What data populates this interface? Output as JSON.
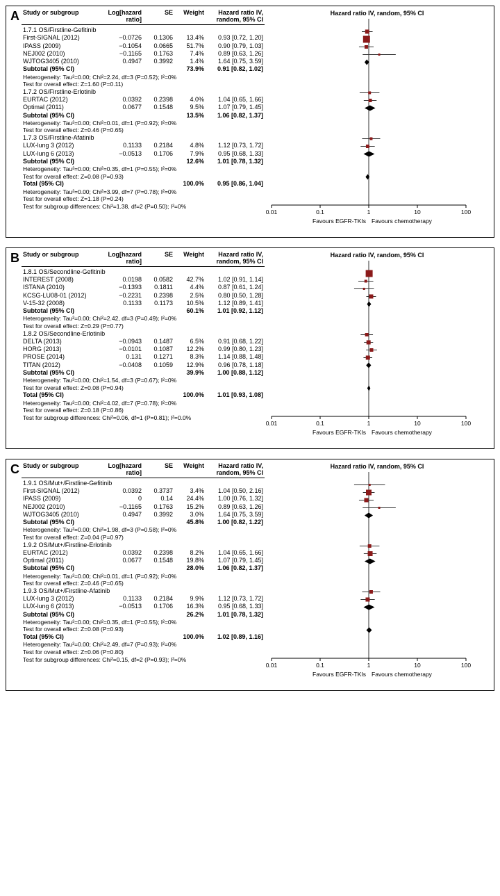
{
  "xScale": {
    "min": 0.01,
    "max": 100,
    "ticks": [
      0.01,
      0.1,
      1,
      10,
      100
    ],
    "tickLabels": [
      "0.01",
      "0.1",
      "1",
      "10",
      "100"
    ],
    "favLeft": "Favours EGFR-TKIs",
    "favRight": "Favours chemotherapy",
    "nullLine": 1
  },
  "colors": {
    "study": "#8b1a1a",
    "diamond": "#000",
    "ci": "#333"
  },
  "header": {
    "study": "Study or subgroup",
    "log": "Log[hazard ratio]",
    "se": "SE",
    "wt": "Weight",
    "hrTxt": "Hazard ratio\nIV, random, 95% CI",
    "hrPlot": "Hazard ratio\nIV, random, 95% CI"
  },
  "panels": [
    {
      "label": "A",
      "groups": [
        {
          "title": "1.7.1 OS/Firstline-Gefitinib",
          "studies": [
            {
              "name": "First-SIGNAL (2012)",
              "log": "−0.0726",
              "se": "0.1306",
              "wt": "13.4%",
              "txt": "0.93 [0.72, 1.20]",
              "hr": 0.93,
              "lo": 0.72,
              "hi": 1.2,
              "sz": 6
            },
            {
              "name": "IPASS (2009)",
              "log": "−0.1054",
              "se": "0.0665",
              "wt": "51.7%",
              "txt": "0.90 [0.79, 1.03]",
              "hr": 0.9,
              "lo": 0.79,
              "hi": 1.03,
              "sz": 10
            },
            {
              "name": "NEJ002 (2010)",
              "log": "−0.1165",
              "se": "0.1763",
              "wt": "7.4%",
              "txt": "0.89 [0.63, 1.26]",
              "hr": 0.89,
              "lo": 0.63,
              "hi": 1.26,
              "sz": 5
            },
            {
              "name": "WJTOG3405 (2010)",
              "log": "0.4947",
              "se": "0.3992",
              "wt": "1.4%",
              "txt": "1.64 [0.75, 3.59]",
              "hr": 1.64,
              "lo": 0.75,
              "hi": 3.59,
              "sz": 3
            }
          ],
          "subtotal": {
            "wt": "73.9%",
            "txt": "0.91 [0.82, 1.02]",
            "hr": 0.91,
            "lo": 0.82,
            "hi": 1.02
          },
          "het": "Heterogeneity: Tau²=0.00; Chi²=2.24, df=3 (P=0.52); I²=0%",
          "eff": "Test for overall effect: Z=1.60 (P=0.11)"
        },
        {
          "title": "1.7.2 OS/Firstline-Erlotinib",
          "studies": [
            {
              "name": "EURTAC (2012)",
              "log": "0.0392",
              "se": "0.2398",
              "wt": "4.0%",
              "txt": "1.04 [0.65, 1.66]",
              "hr": 1.04,
              "lo": 0.65,
              "hi": 1.66,
              "sz": 4
            },
            {
              "name": "Optimal (2011)",
              "log": "0.0677",
              "se": "0.1548",
              "wt": "9.5%",
              "txt": "1.07 [0.79, 1.45]",
              "hr": 1.07,
              "lo": 0.79,
              "hi": 1.45,
              "sz": 5
            }
          ],
          "subtotal": {
            "wt": "13.5%",
            "txt": "1.06 [0.82, 1.37]",
            "hr": 1.06,
            "lo": 0.82,
            "hi": 1.37
          },
          "het": "Heterogeneity: Tau²=0.00; Chi²=0.01, df=1 (P=0.92); I²=0%",
          "eff": "Test for overall effect: Z=0.46 (P=0.65)"
        },
        {
          "title": "1.7.3 OS/Firstline-Afatinib",
          "studies": [
            {
              "name": "LUX-lung 3 (2012)",
              "log": "0.1133",
              "se": "0.2184",
              "wt": "4.8%",
              "txt": "1.12 [0.73, 1.72]",
              "hr": 1.12,
              "lo": 0.73,
              "hi": 1.72,
              "sz": 4
            },
            {
              "name": "LUX-lung 6 (2013)",
              "log": "−0.0513",
              "se": "0.1706",
              "wt": "7.9%",
              "txt": "0.95 [0.68, 1.33]",
              "hr": 0.95,
              "lo": 0.68,
              "hi": 1.33,
              "sz": 5
            }
          ],
          "subtotal": {
            "wt": "12.6%",
            "txt": "1.01 [0.78, 1.32]",
            "hr": 1.01,
            "lo": 0.78,
            "hi": 1.32
          },
          "het": "Heterogeneity: Tau²=0.00; Chi²=0.35, df=1 (P=0.55); I²=0%",
          "eff": "Test for overall effect: Z=0.08 (P=0.93)"
        }
      ],
      "total": {
        "wt": "100.0%",
        "txt": "0.95 [0.86, 1.04]",
        "hr": 0.95,
        "lo": 0.86,
        "hi": 1.04
      },
      "totHet": "Heterogeneity: Tau²=0.00; Chi²=3.99, df=7 (P=0.78); I²=0%",
      "totEff": "Test for overall effect: Z=1.18 (P=0.24)",
      "subDiff": "Test for subgroup differences: Chi²=1.38, df=2 (P=0.50); I²=0%"
    },
    {
      "label": "B",
      "groups": [
        {
          "title": "1.8.1 OS/Secondline-Gefitinib",
          "studies": [
            {
              "name": "INTEREST (2008)",
              "log": "0.0198",
              "se": "0.0582",
              "wt": "42.7%",
              "txt": "1.02 [0.91, 1.14]",
              "hr": 1.02,
              "lo": 0.91,
              "hi": 1.14,
              "sz": 10
            },
            {
              "name": "ISTANA (2010)",
              "log": "−0.1393",
              "se": "0.1811",
              "wt": "4.4%",
              "txt": "0.87 [0.61, 1.24]",
              "hr": 0.87,
              "lo": 0.61,
              "hi": 1.24,
              "sz": 4
            },
            {
              "name": "KCSG-LU08-01 (2012)",
              "log": "−0.2231",
              "se": "0.2398",
              "wt": "2.5%",
              "txt": "0.80 [0.50, 1.28]",
              "hr": 0.8,
              "lo": 0.5,
              "hi": 1.28,
              "sz": 3
            },
            {
              "name": "V-15-32 (2008)",
              "log": "0.1133",
              "se": "0.1173",
              "wt": "10.5%",
              "txt": "1.12 [0.89, 1.41]",
              "hr": 1.12,
              "lo": 0.89,
              "hi": 1.41,
              "sz": 6
            }
          ],
          "subtotal": {
            "wt": "60.1%",
            "txt": "1.01 [0.92, 1.12]",
            "hr": 1.01,
            "lo": 0.92,
            "hi": 1.12
          },
          "het": "Heterogeneity: Tau²=0.00; Chi²=2.42, df=3 (P=0.49); I²=0%",
          "eff": "Test for overall effect: Z=0.29 (P=0.77)"
        },
        {
          "title": "1.8.2 OS/Secondline-Erlotinib",
          "studies": [
            {
              "name": "DELTA (2013)",
              "log": "−0.0943",
              "se": "0.1487",
              "wt": "6.5%",
              "txt": "0.91 [0.68, 1.22]",
              "hr": 0.91,
              "lo": 0.68,
              "hi": 1.22,
              "sz": 5
            },
            {
              "name": "HORG (2013)",
              "log": "−0.0101",
              "se": "0.1087",
              "wt": "12.2%",
              "txt": "0.99 [0.80, 1.23]",
              "hr": 0.99,
              "lo": 0.8,
              "hi": 1.23,
              "sz": 6
            },
            {
              "name": "PROSE (2014)",
              "log": "0.131",
              "se": "0.1271",
              "wt": "8.3%",
              "txt": "1.14 [0.88, 1.48]",
              "hr": 1.14,
              "lo": 0.88,
              "hi": 1.48,
              "sz": 5
            },
            {
              "name": "TITAN (2012)",
              "log": "−0.0408",
              "se": "0.1059",
              "wt": "12.9%",
              "txt": "0.96 [0.78, 1.18]",
              "hr": 0.96,
              "lo": 0.78,
              "hi": 1.18,
              "sz": 6
            }
          ],
          "subtotal": {
            "wt": "39.9%",
            "txt": "1.00 [0.88, 1.12]",
            "hr": 1.0,
            "lo": 0.88,
            "hi": 1.12
          },
          "het": "Heterogeneity: Tau²=0.00; Chi²=1.54, df=3 (P=0.67); I²=0%",
          "eff": "Test for overall effect: Z=0.08 (P=0.94)"
        }
      ],
      "total": {
        "wt": "100.0%",
        "txt": "1.01 [0.93, 1.08]",
        "hr": 1.01,
        "lo": 0.93,
        "hi": 1.08
      },
      "totHet": "Heterogeneity: Tau²=0.00; Chi²=4.02, df=7 (P=0.78); I²=0%",
      "totEff": "Test for overall effect: Z=0.18 (P=0.86)",
      "subDiff": "Test for subgroup differences: Chi²=0.06, df=1 (P=0.81); I²=0.0%"
    },
    {
      "label": "C",
      "groups": [
        {
          "title": "1.9.1 OS/Mut+/Firstline-Gefitinib",
          "studies": [
            {
              "name": "First-SIGNAL (2012)",
              "log": "0.0392",
              "se": "0.3737",
              "wt": "3.4%",
              "txt": "1.04 [0.50, 2.16]",
              "hr": 1.04,
              "lo": 0.5,
              "hi": 2.16,
              "sz": 3
            },
            {
              "name": "IPASS (2009)",
              "log": "0",
              "se": "0.14",
              "wt": "24.4%",
              "txt": "1.00 [0.76, 1.32]",
              "hr": 1.0,
              "lo": 0.76,
              "hi": 1.32,
              "sz": 8
            },
            {
              "name": "NEJ002 (2010)",
              "log": "−0.1165",
              "se": "0.1763",
              "wt": "15.2%",
              "txt": "0.89 [0.63, 1.26]",
              "hr": 0.89,
              "lo": 0.63,
              "hi": 1.26,
              "sz": 6
            },
            {
              "name": "WJTOG3405 (2010)",
              "log": "0.4947",
              "se": "0.3992",
              "wt": "3.0%",
              "txt": "1.64 [0.75, 3.59]",
              "hr": 1.64,
              "lo": 0.75,
              "hi": 3.59,
              "sz": 3
            }
          ],
          "subtotal": {
            "wt": "45.8%",
            "txt": "1.00 [0.82, 1.22]",
            "hr": 1.0,
            "lo": 0.82,
            "hi": 1.22
          },
          "het": "Heterogeneity: Tau²=0.00; Chi²=1.98, df=3 (P=0.58); I²=0%",
          "eff": "Test for overall effect: Z=0.04 (P=0.97)"
        },
        {
          "title": "1.9.2 OS/Mut+/Firstline-Erlotinib",
          "studies": [
            {
              "name": "EURTAC (2012)",
              "log": "0.0392",
              "se": "0.2398",
              "wt": "8.2%",
              "txt": "1.04 [0.65, 1.66]",
              "hr": 1.04,
              "lo": 0.65,
              "hi": 1.66,
              "sz": 5
            },
            {
              "name": "Optimal (2011)",
              "log": "0.0677",
              "se": "0.1548",
              "wt": "19.8%",
              "txt": "1.07 [0.79, 1.45]",
              "hr": 1.07,
              "lo": 0.79,
              "hi": 1.45,
              "sz": 7
            }
          ],
          "subtotal": {
            "wt": "28.0%",
            "txt": "1.06 [0.82, 1.37]",
            "hr": 1.06,
            "lo": 0.82,
            "hi": 1.37
          },
          "het": "Heterogeneity: Tau²=0.00; Chi²=0.01, df=1 (P=0.92); I²=0%",
          "eff": "Test for overall effect: Z=0.46 (P=0.65)"
        },
        {
          "title": "1.9.3 OS/Mut+/Firstline-Afatinib",
          "studies": [
            {
              "name": "LUX-lung 3 (2012)",
              "log": "0.1133",
              "se": "0.2184",
              "wt": "9.9%",
              "txt": "1.12 [0.73, 1.72]",
              "hr": 1.12,
              "lo": 0.73,
              "hi": 1.72,
              "sz": 5
            },
            {
              "name": "LUX-lung 6 (2013)",
              "log": "−0.0513",
              "se": "0.1706",
              "wt": "16.3%",
              "txt": "0.95 [0.68, 1.33]",
              "hr": 0.95,
              "lo": 0.68,
              "hi": 1.33,
              "sz": 6
            }
          ],
          "subtotal": {
            "wt": "26.2%",
            "txt": "1.01 [0.78, 1.32]",
            "hr": 1.01,
            "lo": 0.78,
            "hi": 1.32
          },
          "het": "Heterogeneity: Tau²=0.00; Chi²=0.35, df=1 (P=0.55); I²=0%",
          "eff": "Test for overall effect: Z=0.08 (P=0.93)"
        }
      ],
      "total": {
        "wt": "100.0%",
        "txt": "1.02 [0.89, 1.16]",
        "hr": 1.02,
        "lo": 0.89,
        "hi": 1.16
      },
      "totHet": "Heterogeneity: Tau²=0.00; Chi²=2.49, df=7 (P=0.93); I²=0%",
      "totEff": "Test for overall effect: Z=0.06 (P=0.80)",
      "subDiff": "Test for subgroup differences: Chi²=0.15, df=2 (P=0.93); I²=0%"
    }
  ]
}
